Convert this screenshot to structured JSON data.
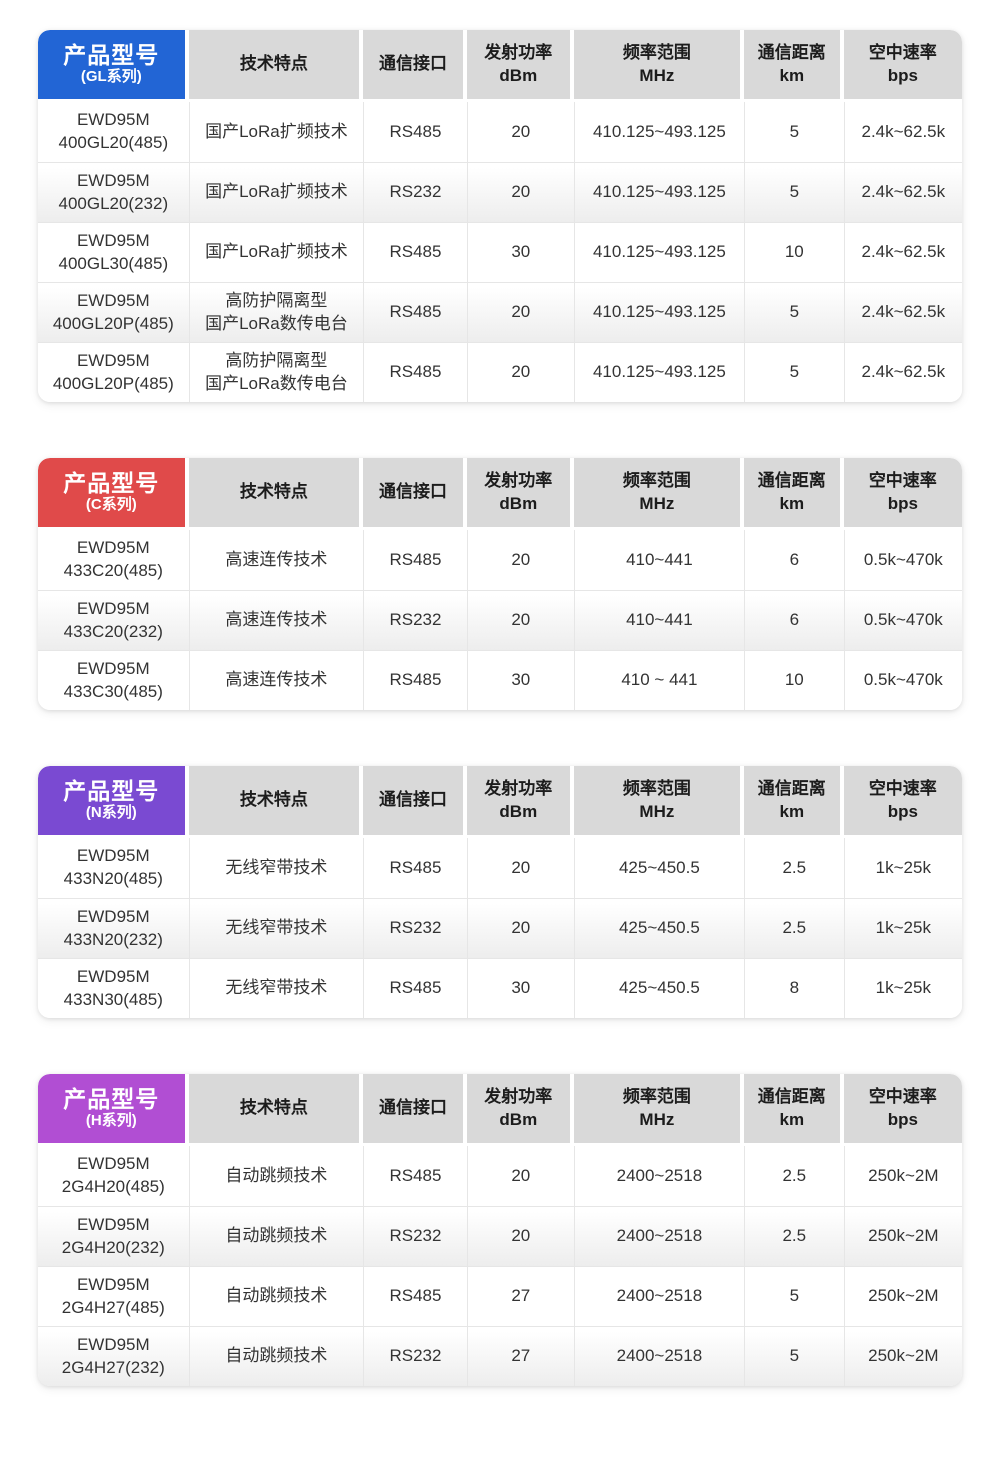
{
  "page": {
    "background": "#ffffff"
  },
  "column_headers": {
    "product": "产品型号",
    "tech": "技术特点",
    "interface": "通信接口",
    "power": "发射功率\ndBm",
    "freq": "频率范围\nMHz",
    "distance": "通信距离\nkm",
    "rate": "空中速率\nbps"
  },
  "tables": [
    {
      "series": "(GL系列)",
      "accent": "#2265d5",
      "rows": [
        {
          "model": "EWD95M\n400GL20(485)",
          "tech": "国产LoRa扩频技术",
          "interface": "RS485",
          "power": "20",
          "freq": "410.125~493.125",
          "distance": "5",
          "rate": "2.4k~62.5k"
        },
        {
          "model": "EWD95M\n400GL20(232)",
          "tech": "国产LoRa扩频技术",
          "interface": "RS232",
          "power": "20",
          "freq": "410.125~493.125",
          "distance": "5",
          "rate": "2.4k~62.5k"
        },
        {
          "model": "EWD95M\n400GL30(485)",
          "tech": "国产LoRa扩频技术",
          "interface": "RS485",
          "power": "30",
          "freq": "410.125~493.125",
          "distance": "10",
          "rate": "2.4k~62.5k"
        },
        {
          "model": "EWD95M\n400GL20P(485)",
          "tech": "高防护隔离型\n国产LoRa数传电台",
          "interface": "RS485",
          "power": "20",
          "freq": "410.125~493.125",
          "distance": "5",
          "rate": "2.4k~62.5k"
        },
        {
          "model": "EWD95M\n400GL20P(485)",
          "tech": "高防护隔离型\n国产LoRa数传电台",
          "interface": "RS485",
          "power": "20",
          "freq": "410.125~493.125",
          "distance": "5",
          "rate": "2.4k~62.5k"
        }
      ]
    },
    {
      "series": "(C系列)",
      "accent": "#e04a4a",
      "rows": [
        {
          "model": "EWD95M\n433C20(485)",
          "tech": "高速连传技术",
          "interface": "RS485",
          "power": "20",
          "freq": "410~441",
          "distance": "6",
          "rate": "0.5k~470k"
        },
        {
          "model": "EWD95M\n433C20(232)",
          "tech": "高速连传技术",
          "interface": "RS232",
          "power": "20",
          "freq": "410~441",
          "distance": "6",
          "rate": "0.5k~470k"
        },
        {
          "model": "EWD95M\n433C30(485)",
          "tech": "高速连传技术",
          "interface": "RS485",
          "power": "30",
          "freq": "410 ~ 441",
          "distance": "10",
          "rate": "0.5k~470k"
        }
      ]
    },
    {
      "series": "(N系列)",
      "accent": "#7a4ad2",
      "rows": [
        {
          "model": "EWD95M\n433N20(485)",
          "tech": "无线窄带技术",
          "interface": "RS485",
          "power": "20",
          "freq": "425~450.5",
          "distance": "2.5",
          "rate": "1k~25k"
        },
        {
          "model": "EWD95M\n433N20(232)",
          "tech": "无线窄带技术",
          "interface": "RS232",
          "power": "20",
          "freq": "425~450.5",
          "distance": "2.5",
          "rate": "1k~25k"
        },
        {
          "model": "EWD95M\n433N30(485)",
          "tech": "无线窄带技术",
          "interface": "RS485",
          "power": "30",
          "freq": "425~450.5",
          "distance": "8",
          "rate": "1k~25k"
        }
      ]
    },
    {
      "series": "(H系列)",
      "accent": "#b14ed3",
      "rows": [
        {
          "model": "EWD95M\n2G4H20(485)",
          "tech": "自动跳频技术",
          "interface": "RS485",
          "power": "20",
          "freq": "2400~2518",
          "distance": "2.5",
          "rate": "250k~2M"
        },
        {
          "model": "EWD95M\n2G4H20(232)",
          "tech": "自动跳频技术",
          "interface": "RS232",
          "power": "20",
          "freq": "2400~2518",
          "distance": "2.5",
          "rate": "250k~2M"
        },
        {
          "model": "EWD95M\n2G4H27(485)",
          "tech": "自动跳频技术",
          "interface": "RS485",
          "power": "27",
          "freq": "2400~2518",
          "distance": "5",
          "rate": "250k~2M"
        },
        {
          "model": "EWD95M\n2G4H27(232)",
          "tech": "自动跳频技术",
          "interface": "RS232",
          "power": "27",
          "freq": "2400~2518",
          "distance": "5",
          "rate": "250k~2M"
        }
      ]
    }
  ]
}
